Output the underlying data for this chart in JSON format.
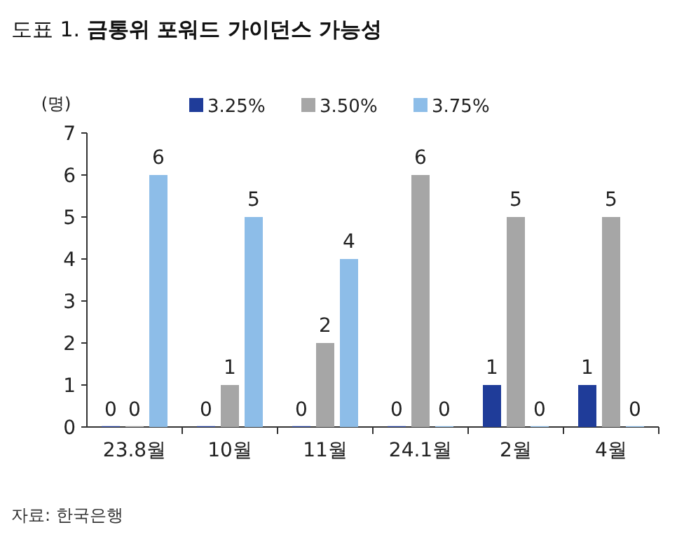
{
  "chart_data": {
    "type": "bar",
    "title": "도표 1.  **금통위 포워드 가이던스 가능성**",
    "ylabel": "(명)",
    "categories": [
      "23.8월",
      "10월",
      "11월",
      "24.1월",
      "2월",
      "4월"
    ],
    "series": [
      {
        "name": "3.25%",
        "color": "#1f3c99",
        "values": [
          0,
          0,
          0,
          0,
          1,
          1
        ]
      },
      {
        "name": "3.50%",
        "color": "#a6a6a6",
        "values": [
          0,
          1,
          2,
          6,
          5,
          5
        ]
      },
      {
        "name": "3.75%",
        "color": "#8dbde8",
        "values": [
          6,
          5,
          4,
          0,
          0,
          0
        ]
      }
    ],
    "ylim": [
      0,
      7
    ],
    "yticks": [
      0,
      1,
      2,
      3,
      4,
      5,
      6,
      7
    ],
    "data_labels": true,
    "legend": "top",
    "grid": false,
    "annotations": [
      "자료: 한국은행"
    ]
  }
}
